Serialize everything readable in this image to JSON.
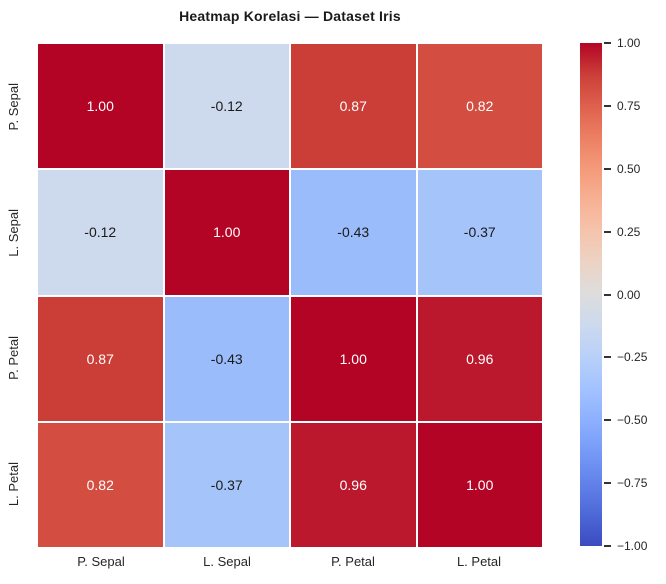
{
  "chart_data": {
    "type": "heatmap",
    "title": "Heatmap Korelasi — Dataset Iris",
    "categories": [
      "P. Sepal",
      "L. Sepal",
      "P. Petal",
      "L. Petal"
    ],
    "matrix": [
      [
        1.0,
        -0.12,
        0.87,
        0.82
      ],
      [
        -0.12,
        1.0,
        -0.43,
        -0.37
      ],
      [
        0.87,
        -0.43,
        1.0,
        0.96
      ],
      [
        0.82,
        -0.37,
        0.96,
        1.0
      ]
    ],
    "annotations": [
      [
        "1.00",
        "-0.12",
        "0.87",
        "0.82"
      ],
      [
        "-0.12",
        "1.00",
        "-0.43",
        "-0.37"
      ],
      [
        "0.87",
        "-0.43",
        "1.00",
        "0.96"
      ],
      [
        "0.82",
        "-0.37",
        "0.96",
        "1.00"
      ]
    ],
    "cell_colors": [
      [
        "#b40426",
        "#cdd9ed",
        "#cb3e38",
        "#d34d41"
      ],
      [
        "#cdd9ed",
        "#b40426",
        "#9bbcfb",
        "#a5c4fa"
      ],
      [
        "#cb3e38",
        "#9bbcfb",
        "#b40426",
        "#bb182d"
      ],
      [
        "#d34d41",
        "#a5c4fa",
        "#bb182d",
        "#b40426"
      ]
    ],
    "cell_text_colors": [
      [
        "#ffffff",
        "#1a1a1a",
        "#ffffff",
        "#ffffff"
      ],
      [
        "#1a1a1a",
        "#ffffff",
        "#1a1a1a",
        "#1a1a1a"
      ],
      [
        "#ffffff",
        "#1a1a1a",
        "#ffffff",
        "#ffffff"
      ],
      [
        "#ffffff",
        "#1a1a1a",
        "#ffffff",
        "#ffffff"
      ]
    ],
    "vmin": -1.0,
    "vmax": 1.0,
    "colormap": "coolwarm",
    "grid_line_color": "#ffffff",
    "legend_position": "right",
    "colorbar": {
      "tick_labels": [
        "1.00",
        "0.75",
        "0.50",
        "0.25",
        "0.00",
        "−0.25",
        "−0.50",
        "−0.75",
        "−1.00"
      ],
      "gradient": [
        {
          "color": "#b40426",
          "pos": "0%"
        },
        {
          "color": "#cb3e38",
          "pos": "6.25%"
        },
        {
          "color": "#de604d",
          "pos": "12.5%"
        },
        {
          "color": "#ec7f63",
          "pos": "18.75%"
        },
        {
          "color": "#f49a7b",
          "pos": "25%"
        },
        {
          "color": "#f7b194",
          "pos": "31.25%"
        },
        {
          "color": "#f5c4ad",
          "pos": "37.5%"
        },
        {
          "color": "#ecd3c5",
          "pos": "43.75%"
        },
        {
          "color": "#dddddd",
          "pos": "50%"
        },
        {
          "color": "#ccd9ee",
          "pos": "56.25%"
        },
        {
          "color": "#b8d0f9",
          "pos": "62.5%"
        },
        {
          "color": "#a3c2ff",
          "pos": "68.75%"
        },
        {
          "color": "#8db0fe",
          "pos": "75%"
        },
        {
          "color": "#779af7",
          "pos": "81.25%"
        },
        {
          "color": "#6282ea",
          "pos": "87.5%"
        },
        {
          "color": "#4d68d7",
          "pos": "93.75%"
        },
        {
          "color": "#3b4cc0",
          "pos": "100%"
        }
      ]
    }
  }
}
